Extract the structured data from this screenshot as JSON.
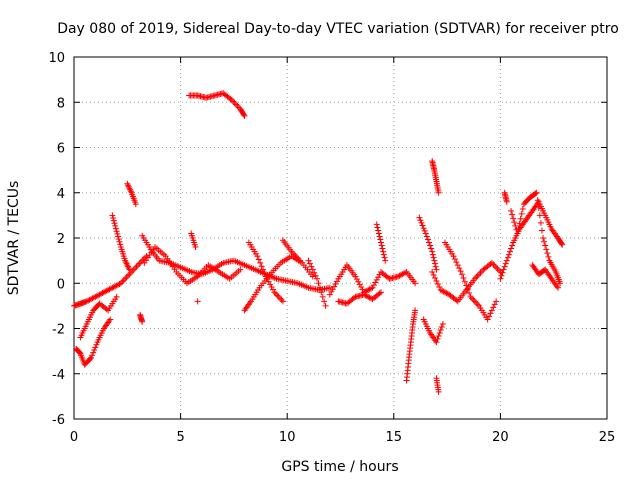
{
  "chart_data": {
    "type": "scatter",
    "title": "Day 080 of 2019, Sidereal Day-to-day VTEC variation (SDTVAR) for receiver ptro",
    "xlabel": "GPS time / hours",
    "ylabel": "SDTVAR / TECUs",
    "xlim": [
      0,
      25
    ],
    "ylim": [
      -6,
      10
    ],
    "x_ticks": [
      "0",
      "5",
      "10",
      "15",
      "20",
      "25"
    ],
    "y_ticks": [
      "-6",
      "-4",
      "-2",
      "0",
      "2",
      "4",
      "6",
      "8",
      "10"
    ],
    "grid": true,
    "marker": "+",
    "color": "#ff0000",
    "series": [
      {
        "name": "SDTVAR",
        "segments": [
          {
            "x": [
              0.0,
              0.3,
              0.6,
              1.0,
              1.4,
              1.8,
              2.2,
              2.6,
              3.0,
              3.4
            ],
            "y": [
              -1.0,
              -0.9,
              -0.8,
              -0.6,
              -0.4,
              -0.2,
              0.0,
              0.4,
              0.8,
              1.2
            ]
          },
          {
            "x": [
              0.1,
              0.3,
              0.5,
              0.8,
              1.1,
              1.4,
              1.7
            ],
            "y": [
              -2.9,
              -3.1,
              -3.6,
              -3.3,
              -2.6,
              -2.0,
              -1.6
            ]
          },
          {
            "x": [
              0.3,
              0.6,
              0.9,
              1.2,
              1.6,
              2.0
            ],
            "y": [
              -2.4,
              -1.8,
              -1.2,
              -0.9,
              -1.2,
              -0.6
            ]
          },
          {
            "x": [
              1.8,
              2.0,
              2.2,
              2.4,
              2.6
            ],
            "y": [
              3.0,
              2.3,
              1.6,
              1.0,
              0.6
            ]
          },
          {
            "x": [
              2.5,
              2.7,
              2.9
            ],
            "y": [
              4.4,
              4.0,
              3.5
            ]
          },
          {
            "x": [
              3.1,
              3.2
            ],
            "y": [
              -1.4,
              -1.7
            ]
          },
          {
            "x": [
              3.2,
              3.6,
              4.0,
              4.5,
              5.0,
              5.5,
              6.0,
              6.5,
              7.0,
              7.5,
              8.0,
              8.5,
              9.0,
              9.5,
              10.0,
              10.5,
              11.0,
              11.5,
              12.0
            ],
            "y": [
              2.1,
              1.5,
              1.0,
              0.9,
              0.7,
              0.5,
              0.4,
              0.6,
              0.9,
              1.0,
              0.8,
              0.6,
              0.4,
              0.2,
              0.1,
              0.0,
              -0.2,
              -0.3,
              -0.2
            ]
          },
          {
            "x": [
              3.3,
              3.8,
              4.3,
              4.8,
              5.3,
              5.8,
              6.3,
              6.8,
              7.3,
              7.8
            ],
            "y": [
              0.9,
              1.6,
              1.2,
              0.5,
              0.0,
              0.3,
              0.8,
              0.5,
              0.2,
              0.6
            ]
          },
          {
            "x": [
              5.4,
              5.8,
              6.2,
              6.6,
              7.0,
              7.4,
              7.8,
              8.0
            ],
            "y": [
              8.3,
              8.3,
              8.2,
              8.3,
              8.4,
              8.1,
              7.7,
              7.4
            ]
          },
          {
            "x": [
              5.5,
              5.7
            ],
            "y": [
              2.2,
              1.6
            ]
          },
          {
            "x": [
              5.8
            ],
            "y": [
              -0.8
            ]
          },
          {
            "x": [
              8.0,
              8.3,
              8.7,
              9.2,
              9.7,
              10.2,
              10.7,
              11.2
            ],
            "y": [
              -1.2,
              -0.8,
              -0.2,
              0.4,
              0.9,
              1.2,
              0.9,
              0.3
            ]
          },
          {
            "x": [
              8.2,
              8.6,
              9.0,
              9.4,
              9.8
            ],
            "y": [
              1.8,
              1.2,
              0.3,
              -0.4,
              -0.8
            ]
          },
          {
            "x": [
              9.8,
              10.2,
              10.6
            ],
            "y": [
              1.9,
              1.4,
              1.0
            ]
          },
          {
            "x": [
              11.0,
              11.4,
              11.8
            ],
            "y": [
              1.0,
              0.2,
              -1.0
            ]
          },
          {
            "x": [
              12.0,
              12.4,
              12.8,
              13.2,
              13.6,
              14.0,
              14.4,
              14.8,
              15.2,
              15.6,
              16.0
            ],
            "y": [
              -0.5,
              0.2,
              0.8,
              0.3,
              -0.4,
              -0.2,
              0.5,
              0.2,
              0.3,
              0.5,
              0.0
            ]
          },
          {
            "x": [
              12.4,
              12.8,
              13.2,
              13.6,
              14.0,
              14.4
            ],
            "y": [
              -0.8,
              -0.9,
              -0.6,
              -0.5,
              -0.7,
              -0.4
            ]
          },
          {
            "x": [
              14.2,
              14.4,
              14.6
            ],
            "y": [
              2.6,
              1.8,
              1.0
            ]
          },
          {
            "x": [
              15.6,
              15.7,
              15.8,
              15.9,
              16.0
            ],
            "y": [
              -4.3,
              -3.4,
              -2.6,
              -1.8,
              -1.2
            ]
          },
          {
            "x": [
              16.2,
              16.5,
              16.8,
              17.0
            ],
            "y": [
              2.9,
              2.2,
              1.4,
              0.6
            ]
          },
          {
            "x": [
              16.8,
              16.9,
              17.0,
              17.1
            ],
            "y": [
              5.4,
              5.0,
              4.5,
              4.0
            ]
          },
          {
            "x": [
              16.4,
              16.7,
              17.0,
              17.3
            ],
            "y": [
              -1.6,
              -2.2,
              -2.6,
              -1.8
            ]
          },
          {
            "x": [
              17.0,
              17.1
            ],
            "y": [
              -4.2,
              -4.8
            ]
          },
          {
            "x": [
              16.8,
              17.2,
              17.6,
              18.0,
              18.4,
              18.8,
              19.2,
              19.6,
              20.0
            ],
            "y": [
              0.5,
              -0.3,
              -0.5,
              -0.8,
              -0.3,
              0.2,
              0.6,
              0.9,
              0.5
            ]
          },
          {
            "x": [
              17.4,
              17.8,
              18.2,
              18.6,
              19.0,
              19.4,
              19.8
            ],
            "y": [
              1.8,
              1.2,
              0.4,
              -0.6,
              -1.0,
              -1.6,
              -0.8
            ]
          },
          {
            "x": [
              20.0,
              20.3,
              20.6,
              20.9,
              21.2,
              21.5,
              21.8,
              22.1,
              22.4,
              22.7,
              22.9
            ],
            "y": [
              0.2,
              1.0,
              1.8,
              2.4,
              2.8,
              3.2,
              3.6,
              3.0,
              2.4,
              2.0,
              1.7
            ]
          },
          {
            "x": [
              20.5,
              20.8,
              21.1,
              21.4,
              21.7,
              22.0,
              22.3,
              22.6,
              22.8
            ],
            "y": [
              3.2,
              2.2,
              3.5,
              3.8,
              4.0,
              2.0,
              1.0,
              0.5,
              0.0
            ]
          },
          {
            "x": [
              20.2,
              20.3
            ],
            "y": [
              4.0,
              3.6
            ]
          },
          {
            "x": [
              21.5,
              21.8,
              22.1,
              22.4,
              22.7
            ],
            "y": [
              0.8,
              0.4,
              0.6,
              0.2,
              -0.2
            ]
          }
        ]
      }
    ]
  }
}
